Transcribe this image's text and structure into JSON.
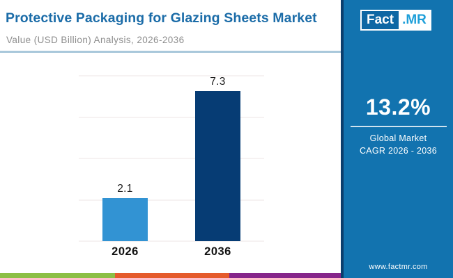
{
  "header": {
    "title": "Protective Packaging for Glazing Sheets Market",
    "subtitle": "Value (USD Billion) Analysis, 2026-2036"
  },
  "logo": {
    "part1": "Fact",
    "part2": ".MR"
  },
  "sidebar": {
    "cagr_value": "13.2%",
    "cagr_label_line1": "Global Market",
    "cagr_label_line2": "CAGR 2026 - 2036",
    "website": "www.factmr.com"
  },
  "chart_data": {
    "type": "bar",
    "title": "Protective Packaging for Glazing Sheets Market",
    "subtitle": "Value (USD Billion) Analysis, 2026-2036",
    "categories": [
      "2026",
      "2036"
    ],
    "values": [
      2.1,
      7.3
    ],
    "value_labels": [
      "2.1",
      "7.3"
    ],
    "bar_colors": [
      "#3293d3",
      "#063c74"
    ],
    "xlabel": "",
    "ylabel": "Value (USD Billion)",
    "ylim": [
      0,
      8
    ],
    "gridline_step": 2,
    "grid": true,
    "legend": false,
    "annotations": [
      "Global Market CAGR 2026 - 2036: 13.2%"
    ]
  },
  "colors": {
    "title_blue": "#1b6ca8",
    "subtitle_gray": "#8d8d8d",
    "header_divider": "#a9c8db",
    "gridline": "#ece6e6",
    "sidebar_bg": "#1273af",
    "sidebar_edge": "#0b3e6d",
    "logo_fact_bg": "#0e67a4",
    "logo_mr_text": "#1e9fd9",
    "stripe_green": "#8cbf45",
    "stripe_orange": "#e55b2b",
    "stripe_purple": "#86258a"
  }
}
